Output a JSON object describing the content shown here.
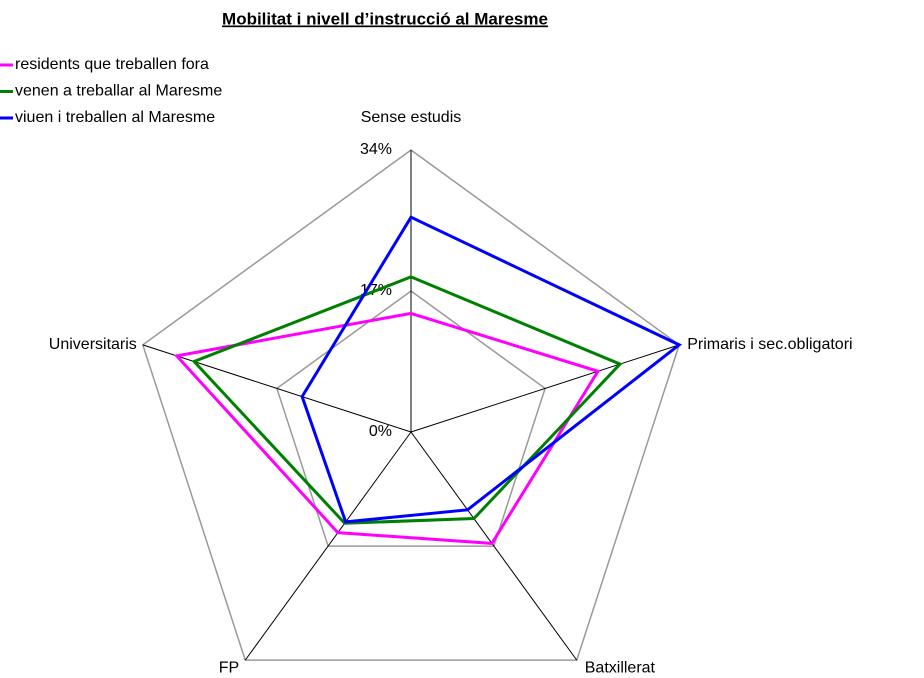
{
  "chart_data": {
    "type": "radar",
    "title": "Mobilitat i nivell d’instrucció al Maresme",
    "categories": [
      "Sense estudis",
      "Primaris i sec.obligatori",
      "Batxillerat",
      "FP",
      "Universitaris"
    ],
    "series": [
      {
        "name": "residents que treballen fora",
        "color": "#ff00ff",
        "values": [
          14.3,
          23.7,
          16.6,
          15.0,
          29.7
        ]
      },
      {
        "name": "venen a treballar al Maresme",
        "color": "#008000",
        "values": [
          18.7,
          26.5,
          12.9,
          13.6,
          27.5
        ]
      },
      {
        "name": "viuen i treballen al Maresme",
        "color": "#0000ff",
        "values": [
          25.9,
          34.0,
          11.6,
          13.4,
          13.8
        ]
      }
    ],
    "ylim": [
      0,
      34
    ],
    "yticks": [
      {
        "value": 0,
        "label": "0%"
      },
      {
        "value": 17,
        "label": "17%"
      },
      {
        "value": 34,
        "label": "34%"
      }
    ],
    "grid": true,
    "legend": "top-left"
  }
}
